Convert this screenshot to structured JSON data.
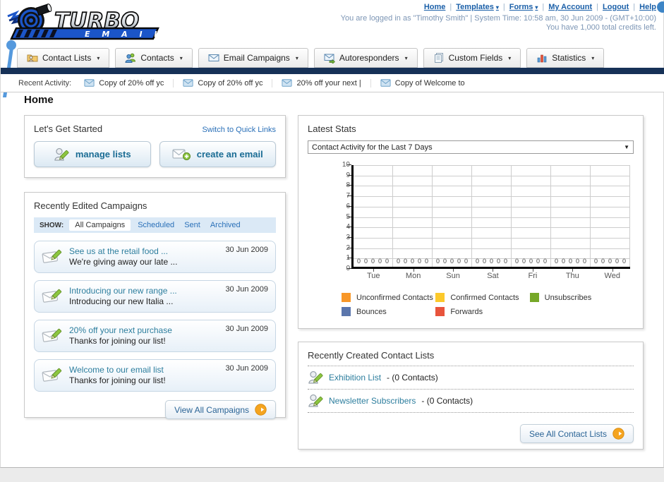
{
  "header": {
    "logo_title": "TURBO",
    "logo_subtitle": "E M A I L",
    "nav_links": [
      {
        "label": "Home",
        "dropdown": false
      },
      {
        "label": "Templates",
        "dropdown": true
      },
      {
        "label": "Forms",
        "dropdown": true
      },
      {
        "label": "My Account",
        "dropdown": false
      },
      {
        "label": "Logout",
        "dropdown": false
      },
      {
        "label": "Help",
        "dropdown": false
      }
    ],
    "login_info": "You are logged in as \"Timothy Smith\" | System Time: 10:58 am, 30 Jun 2009 - (GMT+10:00)",
    "credits_info": "You have 1,000 total credits left."
  },
  "main_nav": {
    "tabs": [
      {
        "label": "Contact Lists",
        "icon": "contact-lists-icon"
      },
      {
        "label": "Contacts",
        "icon": "contacts-icon"
      },
      {
        "label": "Email Campaigns",
        "icon": "email-campaigns-icon"
      },
      {
        "label": "Autoresponders",
        "icon": "autoresponders-icon"
      },
      {
        "label": "Custom Fields",
        "icon": "custom-fields-icon"
      },
      {
        "label": "Statistics",
        "icon": "statistics-icon"
      }
    ]
  },
  "recent_activity": {
    "label": "Recent Activity:",
    "items": [
      "Copy of 20% off yc",
      "Copy of 20% off yc",
      "20% off your next |",
      "Copy of Welcome to"
    ]
  },
  "page_title": "Home",
  "get_started": {
    "title": "Let's Get Started",
    "switch_label": "Switch to Quick Links",
    "buttons": [
      {
        "label": "manage lists"
      },
      {
        "label": "create an email"
      }
    ]
  },
  "campaigns": {
    "title": "Recently Edited Campaigns",
    "show_label": "SHOW:",
    "filters": [
      "All Campaigns",
      "Scheduled",
      "Sent",
      "Archived"
    ],
    "active_filter": "All Campaigns",
    "items": [
      {
        "title": "See us at the retail food ...",
        "subtitle": "We're giving away our late ...",
        "date": "30 Jun 2009"
      },
      {
        "title": "Introducing our new range ...",
        "subtitle": "Introducing our new Italia ...",
        "date": "30 Jun 2009"
      },
      {
        "title": "20% off your next purchase",
        "subtitle": "Thanks for joining our list!",
        "date": "30 Jun 2009"
      },
      {
        "title": "Welcome to our email list",
        "subtitle": "Thanks for joining our list!",
        "date": "30 Jun 2009"
      }
    ],
    "view_all_label": "View All Campaigns"
  },
  "stats": {
    "title": "Latest Stats",
    "dropdown_value": "Contact Activity for the Last 7 Days"
  },
  "chart_data": {
    "type": "bar",
    "title": "Contact Activity for the Last 7 Days",
    "categories": [
      "Tue",
      "Mon",
      "Sun",
      "Sat",
      "Fri",
      "Thu",
      "Wed"
    ],
    "series": [
      {
        "name": "Unconfirmed Contacts",
        "color": "#F89728",
        "values": [
          0,
          0,
          0,
          0,
          0,
          0,
          0
        ]
      },
      {
        "name": "Confirmed Contacts",
        "color": "#FCC92B",
        "values": [
          0,
          0,
          0,
          0,
          0,
          0,
          0
        ]
      },
      {
        "name": "Unsubscribes",
        "color": "#76A828",
        "values": [
          0,
          0,
          0,
          0,
          0,
          0,
          0
        ]
      },
      {
        "name": "Bounces",
        "color": "#5B76AC",
        "values": [
          0,
          0,
          0,
          0,
          0,
          0,
          0
        ]
      },
      {
        "name": "Forwards",
        "color": "#E8543C",
        "values": [
          0,
          0,
          0,
          0,
          0,
          0,
          0
        ]
      }
    ],
    "ylim": [
      0,
      10
    ],
    "yticks": [
      0,
      1,
      2,
      3,
      4,
      5,
      6,
      7,
      8,
      9,
      10
    ],
    "grid": true,
    "legend_position": "bottom",
    "xlabel": "",
    "ylabel": ""
  },
  "contact_lists": {
    "title": "Recently Created Contact Lists",
    "items": [
      {
        "name": "Exhibition List",
        "detail": "- (0 Contacts)"
      },
      {
        "name": "Newsletter Subscribers",
        "detail": "- (0 Contacts)"
      }
    ],
    "see_all_label": "See All Contact Lists"
  }
}
